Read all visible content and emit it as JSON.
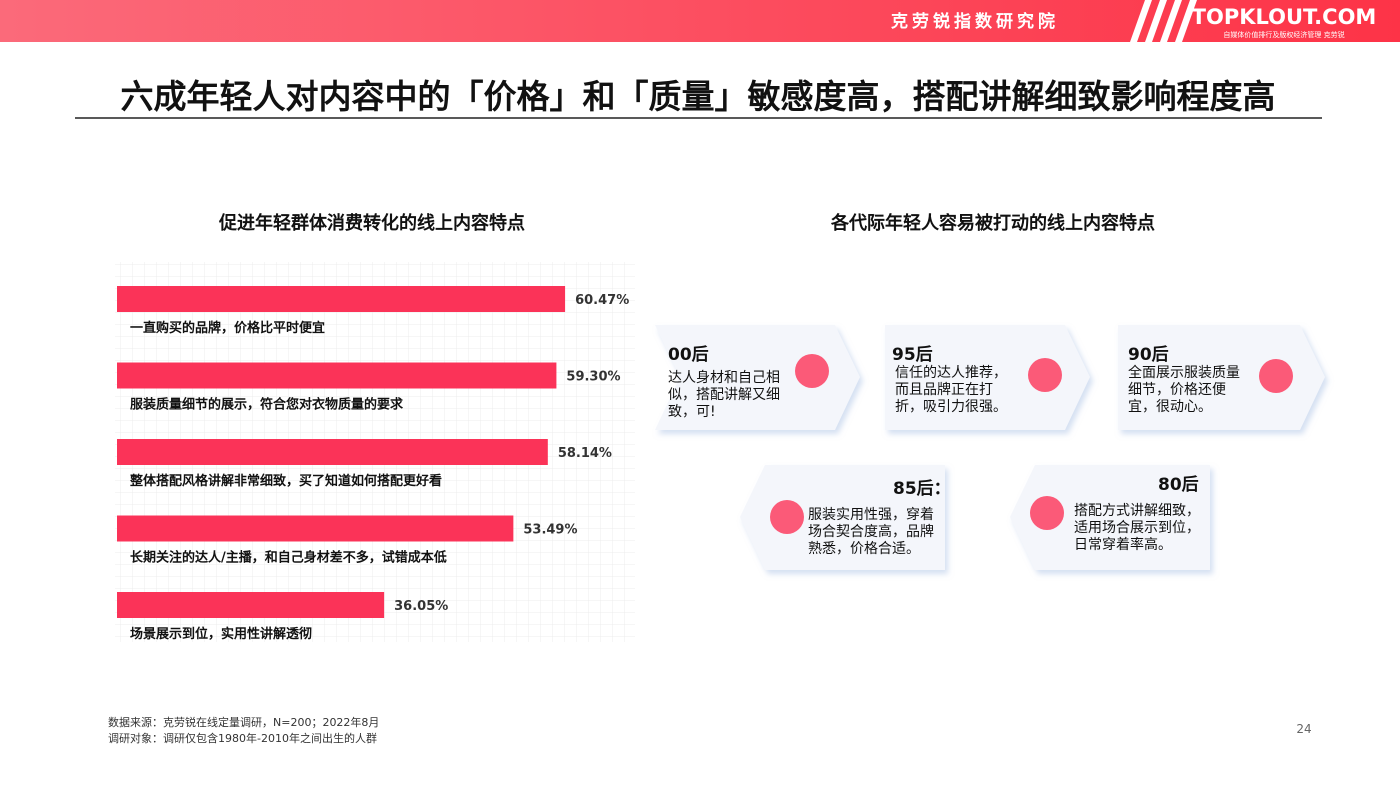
{
  "header": {
    "brand": "克劳锐指数研究院",
    "logo": "TOPKLOUT.COM",
    "logo_sub": "自媒体价值排行及版权经济管理 克劳锐"
  },
  "title": "六成年轻人对内容中的「价格」和「质量」敏感度高，搭配讲解细致影响程度高",
  "chart_data": {
    "type": "bar",
    "orientation": "horizontal",
    "title": "促进年轻群体消费转化的线上内容特点",
    "categories": [
      "一直购买的品牌，价格比平时便宜",
      "服装质量细节的展示，符合您对衣物质量的要求",
      "整体搭配风格讲解非常细致，买了知道如何搭配更好看",
      "长期关注的达人/主播，和自己身材差不多，试错成本低",
      "场景展示到位，实用性讲解透彻"
    ],
    "values": [
      60.47,
      59.3,
      58.14,
      53.49,
      36.05
    ],
    "value_labels": [
      "60.47%",
      "59.30%",
      "58.14%",
      "53.49%",
      "36.05%"
    ],
    "color": "#fb3358"
  },
  "generations": {
    "title": "各代际年轻人容易被打动的线上内容特点",
    "items": [
      {
        "label": "00后",
        "text": "达人身材和自己相似，搭配讲解又细致，可!"
      },
      {
        "label": "95后",
        "text": "信任的达人推荐，而且品牌正在打折，吸引力很强。"
      },
      {
        "label": "90后",
        "text": "全面展示服装质量细节，价格还便宜，很动心。"
      },
      {
        "label": "85后：",
        "text": "服装实用性强，穿着场合契合度高，品牌熟悉，价格合适。"
      },
      {
        "label": "80后",
        "text": "搭配方式讲解细致，适用场合展示到位，日常穿着率高。"
      }
    ]
  },
  "footnotes": [
    "数据来源：克劳锐在线定量调研，N=200；2022年8月",
    "调研对象：调研仅包含1980年-2010年之间出生的人群"
  ],
  "page_number": "24"
}
